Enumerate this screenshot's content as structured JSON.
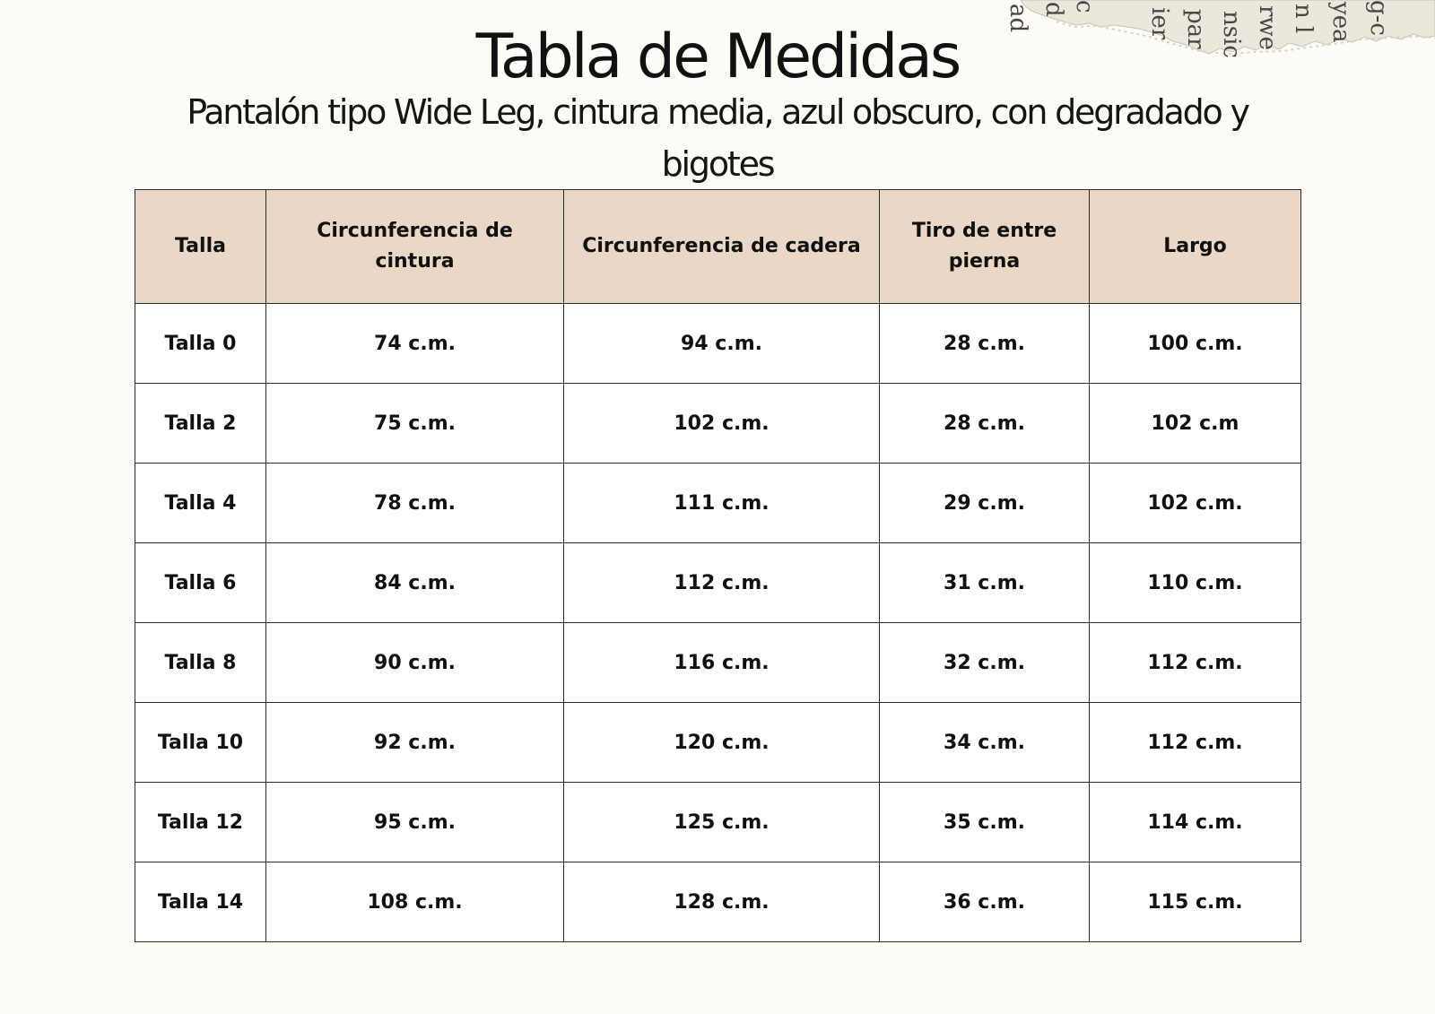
{
  "title": "Tabla de Medidas",
  "subtitle": "Pantalón tipo Wide Leg, cintura media, azul obscuro, con degradado y bigotes",
  "scrap_text": [
    "ad",
    "d",
    "c",
    "ier",
    "par",
    "nsic",
    "rwe",
    "n l",
    "yea",
    "g-c"
  ],
  "table": {
    "headers": [
      "Talla",
      "Circunferencia  de cintura",
      "Circunferencia de cadera",
      "Tiro de entre pierna",
      "Largo"
    ],
    "rows": [
      [
        "Talla 0",
        "74 c.m.",
        "94 c.m.",
        "28 c.m.",
        "100 c.m."
      ],
      [
        "Talla 2",
        "75 c.m.",
        "102 c.m.",
        "28 c.m.",
        "102 c.m"
      ],
      [
        "Talla 4",
        "78 c.m.",
        "111 c.m.",
        "29 c.m.",
        "102 c.m."
      ],
      [
        "Talla 6",
        "84 c.m.",
        "112 c.m.",
        "31 c.m.",
        "110 c.m."
      ],
      [
        "Talla 8",
        "90 c.m.",
        "116 c.m.",
        "32 c.m.",
        "112 c.m."
      ],
      [
        "Talla 10",
        "92 c.m.",
        "120 c.m.",
        "34 c.m.",
        "112 c.m."
      ],
      [
        "Talla 12",
        "95 c.m.",
        "125 c.m.",
        "35 c.m.",
        "114 c.m."
      ],
      [
        "Talla 14",
        "108 c.m.",
        "128 c.m.",
        "36 c.m.",
        "115 c.m."
      ]
    ]
  },
  "colors": {
    "background": "#fcfbf6",
    "header_fill": "#ead7c6",
    "border": "#2b2b2b",
    "text": "#111111"
  }
}
